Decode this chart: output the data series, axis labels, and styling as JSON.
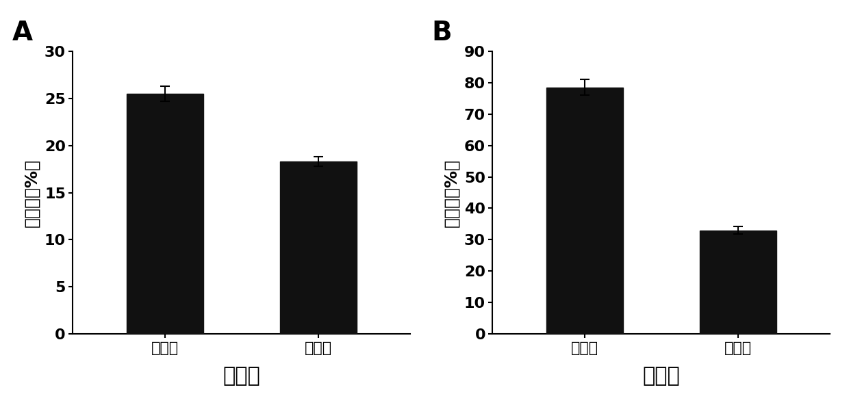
{
  "panel_A": {
    "label": "A",
    "categories": [
      "对照组",
      "处理组"
    ],
    "values": [
      25.5,
      18.3
    ],
    "errors": [
      0.8,
      0.5
    ],
    "ylabel": "发病率（%）",
    "xlabel": "春黄瓜",
    "ylim": [
      0,
      30
    ],
    "yticks": [
      0,
      5,
      10,
      15,
      20,
      25,
      30
    ],
    "bar_color": "#111111",
    "bar_edge_color": "#111111",
    "bar_width": 0.5
  },
  "panel_B": {
    "label": "B",
    "categories": [
      "对照组",
      "处理组"
    ],
    "values": [
      78.5,
      33.0
    ],
    "errors": [
      2.5,
      1.2
    ],
    "ylabel": "发病率（%）",
    "xlabel": "秋黄瓜",
    "ylim": [
      0,
      90
    ],
    "yticks": [
      0,
      10,
      20,
      30,
      40,
      50,
      60,
      70,
      80,
      90
    ],
    "bar_color": "#111111",
    "bar_edge_color": "#111111",
    "bar_width": 0.5
  },
  "figure_bg": "#ffffff",
  "tick_fontsize": 16,
  "axis_label_fontsize": 18,
  "xlabel_fontsize": 22,
  "panel_label_fontsize": 28,
  "error_capsize": 5,
  "error_linewidth": 1.5
}
